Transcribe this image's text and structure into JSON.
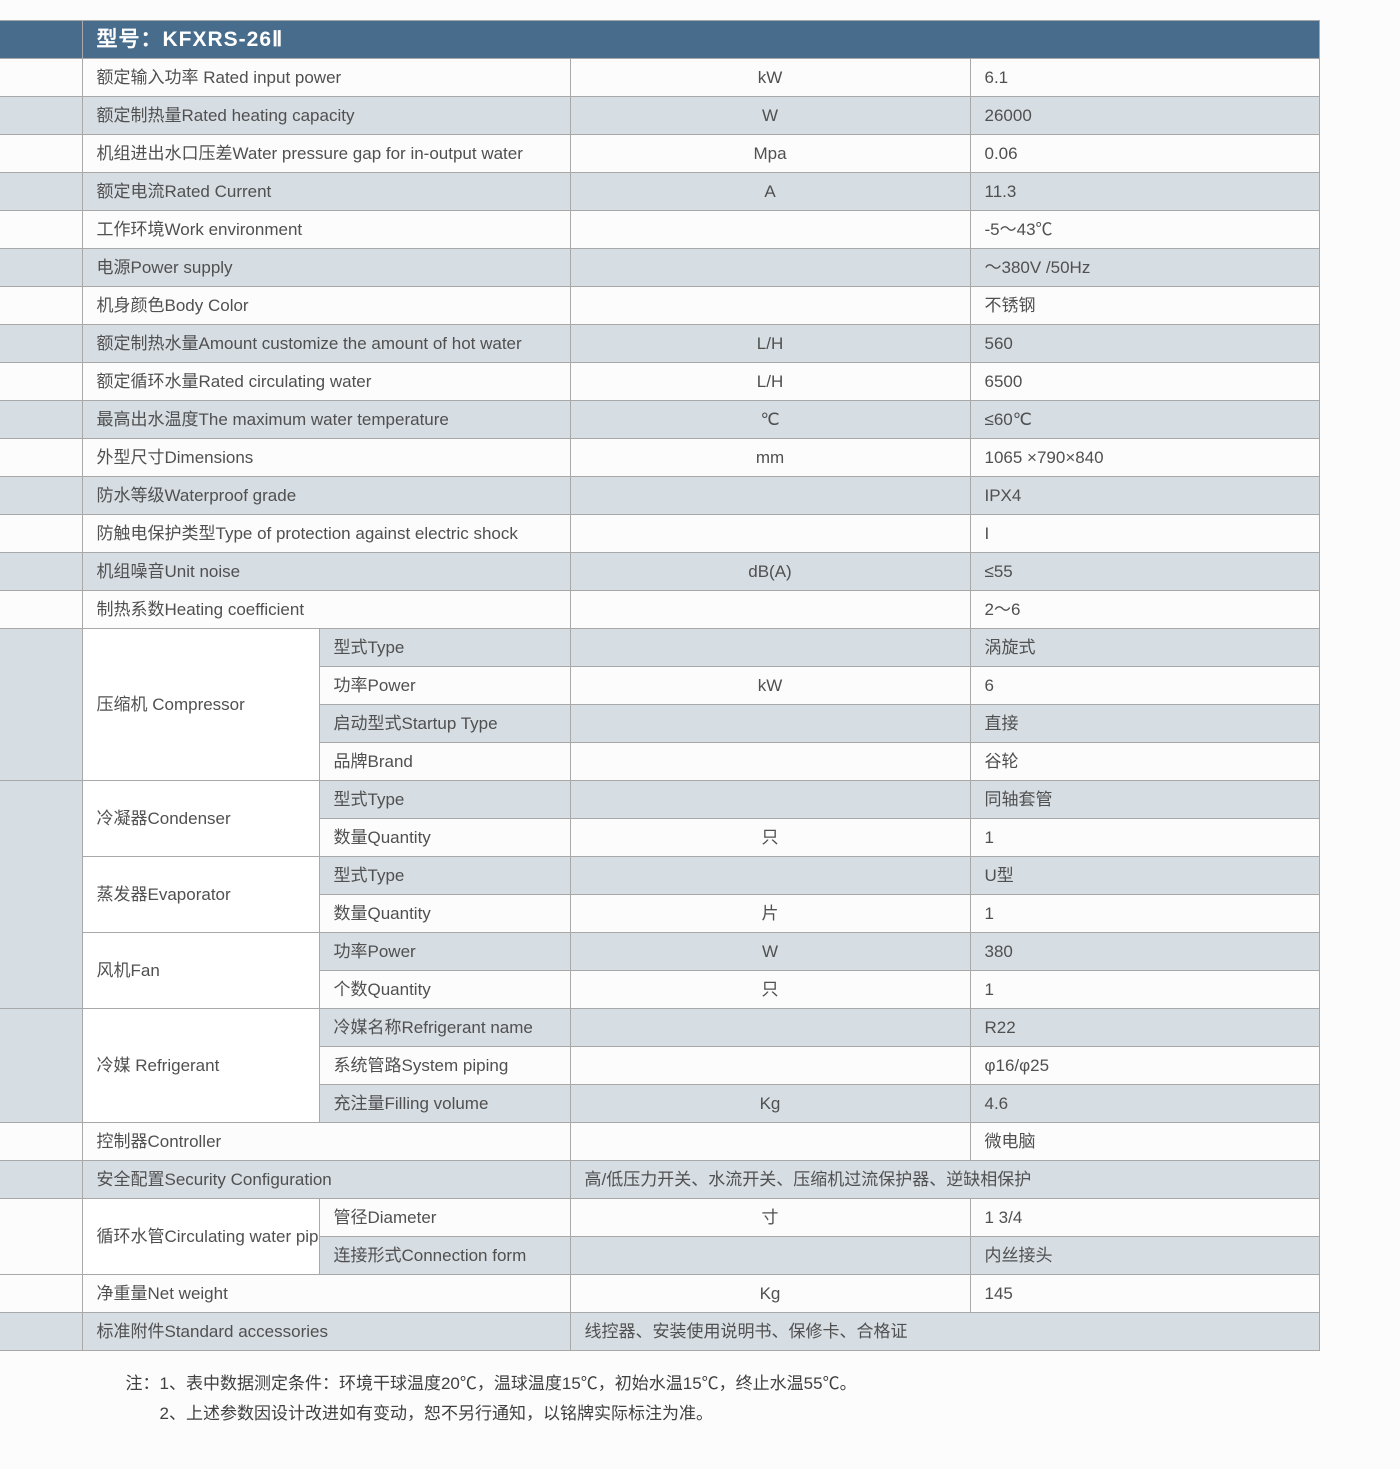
{
  "header": {
    "model_label": "型号：KFXRS-26Ⅱ"
  },
  "rows": [
    {
      "id": "rated-input-power",
      "label": "额定输入功率 Rated input power",
      "unit": "kW",
      "value": "6.1",
      "shade": false
    },
    {
      "id": "rated-heating-capacity",
      "label": "额定制热量Rated heating capacity",
      "unit": "W",
      "value": "26000",
      "shade": true
    },
    {
      "id": "water-pressure-gap",
      "label": "机组进出水口压差Water pressure gap for in-output water",
      "unit": "Mpa",
      "value": "0.06",
      "shade": false
    },
    {
      "id": "rated-current",
      "label": "额定电流Rated Current",
      "unit": "A",
      "value": "11.3",
      "shade": true
    },
    {
      "id": "work-env",
      "label": "工作环境Work environment",
      "unit": "",
      "value": "-5～43℃",
      "shade": false
    },
    {
      "id": "power-supply",
      "label": "电源Power supply",
      "unit": "",
      "value": "～380V /50Hz",
      "shade": true
    },
    {
      "id": "body-color",
      "label": "机身颜色Body Color",
      "unit": "",
      "value": "不锈钢",
      "shade": false
    },
    {
      "id": "hot-water-amount",
      "label": "额定制热水量Amount customize the amount of hot water",
      "unit": "L/H",
      "value": "560",
      "shade": true
    },
    {
      "id": "circulating-water",
      "label": "额定循环水量Rated circulating water",
      "unit": "L/H",
      "value": "6500",
      "shade": false
    },
    {
      "id": "max-water-temp",
      "label": "最高出水温度The maximum water temperature",
      "unit": "℃",
      "value": "≤60℃",
      "shade": true
    },
    {
      "id": "dimensions",
      "label": "外型尺寸Dimensions",
      "unit": "mm",
      "value": "1065 ×790×840",
      "shade": false
    },
    {
      "id": "waterproof",
      "label": "防水等级Waterproof grade",
      "unit": "",
      "value": "IPX4",
      "shade": true
    },
    {
      "id": "shock-protection",
      "label": "防触电保护类型Type of protection against electric shock",
      "unit": "",
      "value": "I",
      "shade": false
    },
    {
      "id": "unit-noise",
      "label": "机组噪音Unit noise",
      "unit": "dB(A)",
      "value": "≤55",
      "shade": true
    },
    {
      "id": "heating-coef",
      "label": "制热系数Heating coefficient",
      "unit": "",
      "value": "2～6",
      "shade": false
    }
  ],
  "groups": {
    "compressor": {
      "label": "压缩机 Compressor",
      "items": [
        {
          "id": "comp-type",
          "attr": "型式Type",
          "unit": "",
          "value": "涡旋式",
          "shade": true
        },
        {
          "id": "comp-power",
          "attr": "功率Power",
          "unit": "kW",
          "value": "6",
          "shade": false
        },
        {
          "id": "comp-startup",
          "attr": "启动型式Startup Type",
          "unit": "",
          "value": "直接",
          "shade": true
        },
        {
          "id": "comp-brand",
          "attr": "品牌Brand",
          "unit": "",
          "value": "谷轮",
          "shade": false
        }
      ]
    },
    "condenser": {
      "label": "冷凝器Condenser",
      "items": [
        {
          "id": "cond-type",
          "attr": "型式Type",
          "unit": "",
          "value": "同轴套管",
          "shade": true
        },
        {
          "id": "cond-qty",
          "attr": "数量Quantity",
          "unit": "只",
          "value": "1",
          "shade": false
        }
      ]
    },
    "evaporator": {
      "label": "蒸发器Evaporator",
      "items": [
        {
          "id": "evap-type",
          "attr": "型式Type",
          "unit": "",
          "value": "U型",
          "shade": true
        },
        {
          "id": "evap-qty",
          "attr": "数量Quantity",
          "unit": "片",
          "value": "1",
          "shade": false
        }
      ]
    },
    "fan": {
      "label": "风机Fan",
      "items": [
        {
          "id": "fan-power",
          "attr": "功率Power",
          "unit": "W",
          "value": "380",
          "shade": true
        },
        {
          "id": "fan-qty",
          "attr": "个数Quantity",
          "unit": "只",
          "value": "1",
          "shade": false
        }
      ]
    },
    "refrigerant": {
      "label": "冷媒 Refrigerant",
      "items": [
        {
          "id": "ref-name",
          "attr": "冷媒名称Refrigerant name",
          "unit": "",
          "value": "R22",
          "shade": true
        },
        {
          "id": "ref-piping",
          "attr": "系统管路System piping",
          "unit": "",
          "value": "φ16/φ25",
          "shade": false
        },
        {
          "id": "ref-fill",
          "attr": "充注量Filling volume",
          "unit": "Kg",
          "value": "4.6",
          "shade": true
        }
      ]
    },
    "controller": {
      "label": "控制器Controller",
      "unit": "",
      "value": "微电脑"
    },
    "security": {
      "label": "安全配置Security Configuration",
      "value": "高/低压力开关、水流开关、压缩机过流保护器、逆缺相保护"
    },
    "pipe": {
      "label": "循环水管Circulating water pipe",
      "items": [
        {
          "id": "pipe-diam",
          "attr": "管径Diameter",
          "unit": "寸",
          "value": "1 3/4",
          "shade": false
        },
        {
          "id": "pipe-conn",
          "attr": "连接形式Connection form",
          "unit": "",
          "value": "内丝接头",
          "shade": true
        }
      ]
    },
    "netweight": {
      "label": "净重量Net weight",
      "unit": "Kg",
      "value": "145"
    },
    "accessories": {
      "label": "标准附件Standard accessories",
      "value": "线控器、安装使用说明书、保修卡、合格证"
    }
  },
  "notes": {
    "line1": "注：1、表中数据测定条件：环境干球温度20℃，温球温度15℃，初始水温15℃，终止水温55℃。",
    "line2": "　　2、上述参数因设计改进如有变动，恕不另行通知，以铭牌实际标注为准。"
  },
  "style": {
    "header_bg": "#476c8c",
    "shade_bg": "#d6dde3",
    "border": "#a8a8a8",
    "text": "#505050",
    "font_size_body": 17,
    "font_size_header": 21
  }
}
